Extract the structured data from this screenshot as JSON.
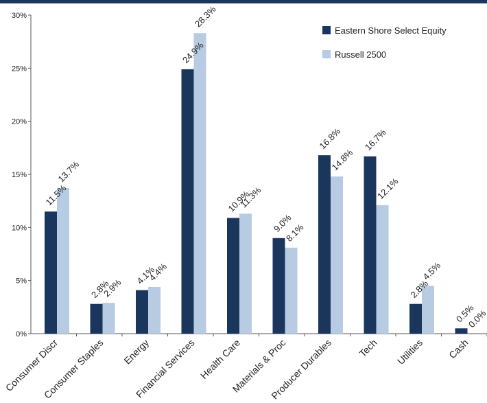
{
  "chart_data": {
    "type": "bar",
    "title": "",
    "xlabel": "",
    "ylabel": "",
    "ylim": [
      0,
      30
    ],
    "yticks": [
      0,
      5,
      10,
      15,
      20,
      25,
      30
    ],
    "ytick_labels": [
      "0%",
      "5%",
      "10%",
      "15%",
      "20%",
      "25%",
      "30%"
    ],
    "grid": false,
    "legend_position": "top-right",
    "categories": [
      "Consumer Discr",
      "Consumer Staples",
      "Energy",
      "Financial Services",
      "Health Care",
      "Materials & Proc",
      "Producer Durables",
      "Tech",
      "Utilities",
      "Cash"
    ],
    "series": [
      {
        "name": "Eastern Shore Select Equity",
        "color": "#1b365d",
        "values": [
          11.5,
          2.8,
          4.1,
          24.9,
          10.9,
          9.0,
          16.8,
          16.7,
          2.8,
          0.5
        ],
        "labels": [
          "11.5%",
          "2.8%",
          "4.1%",
          "24.9%",
          "10.9%",
          "9.0%",
          "16.8%",
          "16.7%",
          "2.8%",
          "0.5%"
        ]
      },
      {
        "name": "Russell 2500",
        "color": "#b7cbe3",
        "values": [
          13.7,
          2.9,
          4.4,
          28.3,
          11.3,
          8.1,
          14.8,
          12.1,
          4.5,
          0.0
        ],
        "labels": [
          "13.7%",
          "2.9%",
          "4.4%",
          "28.3%",
          "11.3%",
          "8.1%",
          "14.8%",
          "12.1%",
          "4.5%",
          "0.0%"
        ]
      }
    ]
  }
}
